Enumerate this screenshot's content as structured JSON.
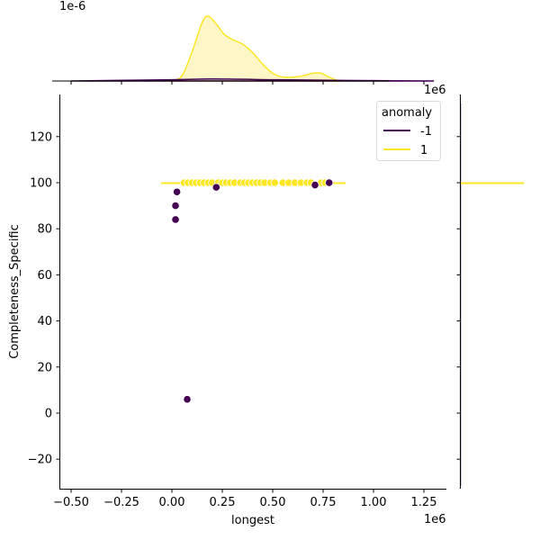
{
  "chart_data": {
    "type": "scatter",
    "subtype": "jointplot",
    "title": "",
    "xlabel": "longest",
    "ylabel": "Completeness_Specific",
    "x_offset_text": "1e6",
    "top_marginal_offset_text": "1e-6",
    "xlim": [
      -0.55,
      1.36
    ],
    "ylim": [
      -32,
      138
    ],
    "x_scale": 1000000,
    "xticks": [
      -0.5,
      -0.25,
      0.0,
      0.25,
      0.5,
      0.75,
      1.0,
      1.25
    ],
    "xtick_labels": [
      "−0.50",
      "−0.25",
      "0.00",
      "0.25",
      "0.50",
      "0.75",
      "1.00",
      "1.25"
    ],
    "yticks": [
      -20,
      0,
      20,
      40,
      60,
      80,
      100,
      120
    ],
    "ytick_labels": [
      "−20",
      "0",
      "20",
      "40",
      "60",
      "80",
      "100",
      "120"
    ],
    "grid": false,
    "legend": {
      "title": "anomaly",
      "position": "upper right",
      "entries": [
        {
          "label": "-1",
          "color": "#440154"
        },
        {
          "label": "1",
          "color": "#fde725"
        }
      ]
    },
    "series": [
      {
        "name": "-1",
        "color": "#440154",
        "points": [
          {
            "x": 0.018,
            "y": 84
          },
          {
            "x": 0.018,
            "y": 90
          },
          {
            "x": 0.025,
            "y": 96
          },
          {
            "x": 0.076,
            "y": 6
          },
          {
            "x": 0.22,
            "y": 98
          },
          {
            "x": 0.71,
            "y": 99
          },
          {
            "x": 0.78,
            "y": 100
          }
        ]
      },
      {
        "name": "1",
        "color": "#fde725",
        "points": [
          {
            "x": 0.06,
            "y": 100
          },
          {
            "x": 0.08,
            "y": 100
          },
          {
            "x": 0.1,
            "y": 100
          },
          {
            "x": 0.12,
            "y": 100
          },
          {
            "x": 0.14,
            "y": 100
          },
          {
            "x": 0.16,
            "y": 100
          },
          {
            "x": 0.18,
            "y": 100
          },
          {
            "x": 0.2,
            "y": 100
          },
          {
            "x": 0.23,
            "y": 100
          },
          {
            "x": 0.25,
            "y": 100
          },
          {
            "x": 0.27,
            "y": 100
          },
          {
            "x": 0.29,
            "y": 100
          },
          {
            "x": 0.31,
            "y": 100
          },
          {
            "x": 0.34,
            "y": 100
          },
          {
            "x": 0.36,
            "y": 100
          },
          {
            "x": 0.38,
            "y": 100
          },
          {
            "x": 0.4,
            "y": 100
          },
          {
            "x": 0.42,
            "y": 100
          },
          {
            "x": 0.44,
            "y": 100
          },
          {
            "x": 0.46,
            "y": 100
          },
          {
            "x": 0.49,
            "y": 100
          },
          {
            "x": 0.51,
            "y": 100
          },
          {
            "x": 0.55,
            "y": 100
          },
          {
            "x": 0.58,
            "y": 100
          },
          {
            "x": 0.61,
            "y": 100
          },
          {
            "x": 0.64,
            "y": 100
          },
          {
            "x": 0.67,
            "y": 100
          },
          {
            "x": 0.69,
            "y": 100
          },
          {
            "x": 0.74,
            "y": 100
          },
          {
            "x": 0.76,
            "y": 100
          }
        ]
      }
    ],
    "top_marginal_kde": {
      "series": [
        {
          "name": "1",
          "color": "#fde725",
          "fill": "#fdf6c6",
          "x": [
            -0.05,
            0.0,
            0.05,
            0.1,
            0.15,
            0.18,
            0.22,
            0.26,
            0.3,
            0.35,
            0.4,
            0.45,
            0.5,
            0.55,
            0.6,
            0.65,
            0.7,
            0.74,
            0.78,
            0.82,
            0.85
          ],
          "y_relative": [
            0.0,
            0.01,
            0.08,
            0.45,
            0.9,
            1.0,
            0.88,
            0.72,
            0.64,
            0.57,
            0.44,
            0.26,
            0.12,
            0.06,
            0.06,
            0.08,
            0.12,
            0.12,
            0.06,
            0.01,
            0.0
          ]
        },
        {
          "name": "-1",
          "color": "#440154",
          "x": [
            -0.5,
            0.0,
            0.2,
            0.5,
            0.8,
            1.3
          ],
          "y_relative": [
            0.0,
            0.02,
            0.03,
            0.02,
            0.01,
            0.0
          ]
        }
      ]
    },
    "right_marginal_kde": {
      "series": [
        {
          "name": "1",
          "color": "#fde725",
          "y": 100,
          "note": "degenerate spike at y=100"
        },
        {
          "name": "-1",
          "color": "#440154",
          "note": "near-flat along axis"
        }
      ]
    }
  }
}
